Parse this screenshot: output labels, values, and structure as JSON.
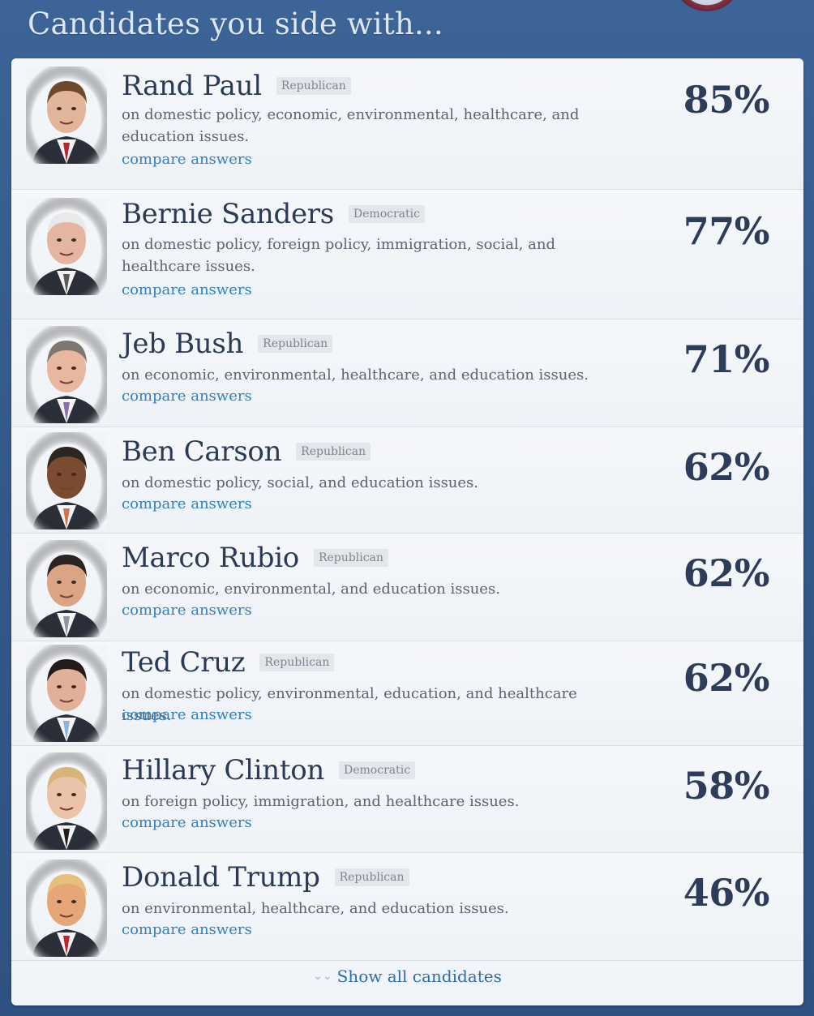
{
  "header": {
    "title": "Candidates you side with..."
  },
  "candidates": [
    {
      "name": "Rand Paul",
      "party": "Republican",
      "description": "on domestic policy, economic, environmental, healthcare, and education issues.",
      "compare_label": "compare answers",
      "match": "85%",
      "skin": "#e2b59a",
      "hair": "#6e4a2c",
      "tie": "#b3262c"
    },
    {
      "name": "Bernie Sanders",
      "party": "Democratic",
      "description": "on domestic policy, foreign policy, immigration, social, and healthcare issues.",
      "compare_label": "compare answers",
      "match": "77%",
      "skin": "#e4b5a0",
      "hair": "#e9e9e9",
      "tie": "#5a5a5a"
    },
    {
      "name": "Jeb Bush",
      "party": "Republican",
      "description": "on economic, environmental, healthcare, and education issues.",
      "compare_label": "compare answers",
      "match": "71%",
      "skin": "#e7b7a0",
      "hair": "#7d7770",
      "tie": "#8a6fa8"
    },
    {
      "name": "Ben Carson",
      "party": "Republican",
      "description": "on domestic policy, social, and education issues.",
      "compare_label": "compare answers",
      "match": "62%",
      "skin": "#7a4b30",
      "hair": "#2d2520",
      "tie": "#d76f4a"
    },
    {
      "name": "Marco Rubio",
      "party": "Republican",
      "description": "on economic, environmental, and education issues.",
      "compare_label": "compare answers",
      "match": "62%",
      "skin": "#d9a585",
      "hair": "#2b2420",
      "tie": "#8c95a3"
    },
    {
      "name": "Ted Cruz",
      "party": "Republican",
      "description": "on domestic policy, environmental, education, and healthcare issues.",
      "compare_label": "compare answers",
      "match": "62%",
      "skin": "#e0b099",
      "hair": "#241c18",
      "tie": "#8ab4d8"
    },
    {
      "name": "Hillary Clinton",
      "party": "Democratic",
      "description": "on foreign policy, immigration, and healthcare issues.",
      "compare_label": "compare answers",
      "match": "58%",
      "skin": "#ebc3a8",
      "hair": "#d7b57a",
      "tie": "#1d1d1d"
    },
    {
      "name": "Donald Trump",
      "party": "Republican",
      "description": "on environmental, healthcare, and education issues.",
      "compare_label": "compare answers",
      "match": "46%",
      "skin": "#e6a778",
      "hair": "#e6c07a",
      "tie": "#c4232b"
    }
  ],
  "footer": {
    "show_all_label": "Show all candidates",
    "chevron_icon": "double-chevron-down-icon"
  },
  "colors": {
    "background": "#33588a",
    "link": "#2f7fc6",
    "name": "#2b3a55",
    "percent": "#2c3c59"
  }
}
